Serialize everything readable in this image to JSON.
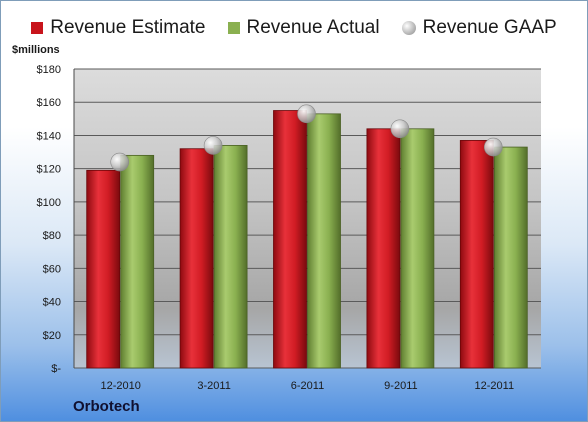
{
  "chart_data": {
    "type": "bar",
    "categories": [
      "12-2010",
      "3-2011",
      "6-2011",
      "9-2011",
      "12-2011"
    ],
    "series": [
      {
        "name": "Revenue Estimate",
        "values": [
          119,
          132,
          155,
          144,
          137
        ],
        "color": "#c8141c"
      },
      {
        "name": "Revenue Actual",
        "values": [
          128,
          134,
          153,
          144,
          133
        ],
        "color": "#8ab050"
      },
      {
        "name": "Revenue GAAP",
        "values": [
          124,
          134,
          153,
          144,
          133
        ],
        "color": "#b0b0b0",
        "marker": "circle"
      }
    ],
    "ylabel": "$millions",
    "ylim": [
      0,
      180
    ],
    "yticks": [
      0,
      20,
      40,
      60,
      80,
      100,
      120,
      140,
      160,
      180
    ],
    "ytick_labels": [
      "$-",
      "$20",
      "$40",
      "$60",
      "$80",
      "$100",
      "$120",
      "$140",
      "$160",
      "$180"
    ],
    "grid": true,
    "legend": "top"
  },
  "footer": {
    "company": "Orbotech"
  }
}
